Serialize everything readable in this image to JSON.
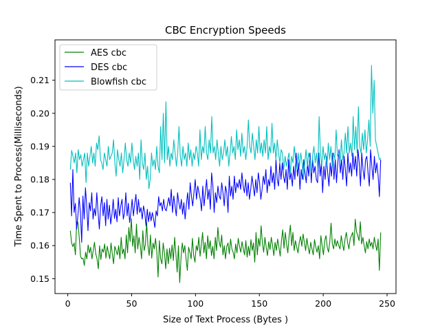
{
  "chart_data": {
    "type": "line",
    "title": "CBC Encryption Speeds",
    "xlabel": "Size of Text Process (Bytes )",
    "ylabel": "Time Spent to Process(Milliseconds)",
    "xlim": [
      -10,
      257
    ],
    "ylim": [
      0.1455,
      0.2222
    ],
    "xticks": [
      0,
      50,
      100,
      150,
      200,
      250
    ],
    "yticks": [
      0.15,
      0.16,
      0.17,
      0.18,
      0.19,
      0.2,
      0.21
    ],
    "ytick_labels": [
      "0.15",
      "0.16",
      "0.17",
      "0.18",
      "0.19",
      "0.20",
      "0.21"
    ],
    "legend_position": "upper-left",
    "grid": false,
    "x_start": 2,
    "x_end": 245,
    "series": [
      {
        "name": "AES  cbc",
        "color": "#008000",
        "values": [
          0.1645,
          0.1608,
          0.1597,
          0.1608,
          0.1572,
          0.1672,
          0.167,
          0.1625,
          0.1568,
          0.156,
          0.1562,
          0.154,
          0.158,
          0.156,
          0.1602,
          0.1578,
          0.1595,
          0.156,
          0.1585,
          0.161,
          0.1575,
          0.156,
          0.153,
          0.16,
          0.1558,
          0.159,
          0.158,
          0.1605,
          0.1562,
          0.1598,
          0.1578,
          0.156,
          0.1608,
          0.1575,
          0.1545,
          0.1598,
          0.1585,
          0.1572,
          0.16,
          0.156,
          0.1625,
          0.1575,
          0.159,
          0.156,
          0.1632,
          0.1578,
          0.1655,
          0.1612,
          0.1682,
          0.1598,
          0.163,
          0.1578,
          0.1665,
          0.159,
          0.1625,
          0.16,
          0.156,
          0.1645,
          0.1585,
          0.1602,
          0.167,
          0.16,
          0.157,
          0.1632,
          0.1562,
          0.1608,
          0.159,
          0.1622,
          0.158,
          0.1505,
          0.1615,
          0.156,
          0.1545,
          0.1608,
          0.1578,
          0.153,
          0.159,
          0.1545,
          0.1592,
          0.156,
          0.1602,
          0.1555,
          0.1625,
          0.1575,
          0.152,
          0.16,
          0.1488,
          0.1562,
          0.1608,
          0.1578,
          0.16,
          0.156,
          0.1525,
          0.1595,
          0.158,
          0.156,
          0.1622,
          0.157,
          0.155,
          0.16,
          0.1585,
          0.1625,
          0.1568,
          0.1602,
          0.164,
          0.1578,
          0.161,
          0.156,
          0.163,
          0.159,
          0.1615,
          0.157,
          0.1598,
          0.156,
          0.1625,
          0.1585,
          0.1655,
          0.1612,
          0.1595,
          0.1632,
          0.1572,
          0.16,
          0.156,
          0.1598,
          0.1608,
          0.1575,
          0.162,
          0.159,
          0.158,
          0.156,
          0.1605,
          0.1578,
          0.1622,
          0.1598,
          0.158,
          0.1612,
          0.159,
          0.1572,
          0.1615,
          0.1565,
          0.1598,
          0.157,
          0.1618,
          0.1585,
          0.1608,
          0.155,
          0.164,
          0.1572,
          0.1622,
          0.1598,
          0.166,
          0.1608,
          0.158,
          0.1625,
          0.1595,
          0.157,
          0.1612,
          0.1588,
          0.1625,
          0.16,
          0.157,
          0.161,
          0.1585,
          0.162,
          0.1595,
          0.1568,
          0.1615,
          0.1648,
          0.1592,
          0.164,
          0.1605,
          0.1578,
          0.1628,
          0.1662,
          0.16,
          0.164,
          0.1585,
          0.1615,
          0.1595,
          0.1578,
          0.161,
          0.1628,
          0.1598,
          0.1635,
          0.161,
          0.1585,
          0.1622,
          0.1595,
          0.1575,
          0.161,
          0.159,
          0.1572,
          0.1618,
          0.1595,
          0.158,
          0.16,
          0.156,
          0.163,
          0.16,
          0.1572,
          0.1615,
          0.163,
          0.1595,
          0.158,
          0.1612,
          0.1668,
          0.1605,
          0.159,
          0.162,
          0.1598,
          0.1615,
          0.16,
          0.159,
          0.163,
          0.1605,
          0.1585,
          0.162,
          0.164,
          0.161,
          0.159,
          0.162,
          0.163,
          0.164,
          0.16,
          0.168,
          0.1642,
          0.163,
          0.1615,
          0.1672,
          0.1605,
          0.1625,
          0.16,
          0.1578,
          0.1612,
          0.159,
          0.162,
          0.1598,
          0.161,
          0.159,
          0.1625,
          0.1602,
          0.1585,
          0.162,
          0.1525,
          0.164
        ]
      },
      {
        "name": "DES  cbc",
        "color": "#0000ff",
        "values": [
          0.179,
          0.169,
          0.183,
          0.17,
          0.1728,
          0.165,
          0.169,
          0.1745,
          0.17,
          0.161,
          0.175,
          0.168,
          0.1775,
          0.172,
          0.1645,
          0.173,
          0.1705,
          0.176,
          0.168,
          0.1712,
          0.169,
          0.176,
          0.17,
          0.165,
          0.172,
          0.1748,
          0.169,
          0.173,
          0.166,
          0.174,
          0.168,
          0.1722,
          0.1665,
          0.1695,
          0.174,
          0.1682,
          0.171,
          0.1672,
          0.1745,
          0.169,
          0.172,
          0.174,
          0.168,
          0.17,
          0.176,
          0.169,
          0.1728,
          0.167,
          0.17,
          0.174,
          0.169,
          0.1725,
          0.1755,
          0.1695,
          0.174,
          0.17,
          0.1715,
          0.168,
          0.172,
          0.17,
          0.166,
          0.171,
          0.1672,
          0.1702,
          0.1675,
          0.17,
          0.168,
          0.1655,
          0.1705,
          0.169,
          0.1748,
          0.172,
          0.173,
          0.1705,
          0.174,
          0.1712,
          0.1705,
          0.1725,
          0.1745,
          0.172,
          0.177,
          0.17,
          0.175,
          0.172,
          0.169,
          0.176,
          0.173,
          0.171,
          0.174,
          0.1695,
          0.173,
          0.168,
          0.1725,
          0.176,
          0.171,
          0.179,
          0.175,
          0.172,
          0.176,
          0.18,
          0.174,
          0.178,
          0.176,
          0.174,
          0.1705,
          0.178,
          0.172,
          0.176,
          0.18,
          0.174,
          0.177,
          0.171,
          0.182,
          0.178,
          0.17,
          0.176,
          0.173,
          0.178,
          0.175,
          0.174,
          0.179,
          0.176,
          0.172,
          0.178,
          0.176,
          0.17,
          0.181,
          0.175,
          0.178,
          0.174,
          0.181,
          0.176,
          0.179,
          0.1775,
          0.18,
          0.177,
          0.182,
          0.178,
          0.176,
          0.18,
          0.175,
          0.179,
          0.174,
          0.177,
          0.181,
          0.178,
          0.175,
          0.18,
          0.176,
          0.182,
          0.179,
          0.174,
          0.177,
          0.181,
          0.1785,
          0.183,
          0.176,
          0.18,
          0.178,
          0.184,
          0.179,
          0.182,
          0.177,
          0.186,
          0.18,
          0.178,
          0.185,
          0.18,
          0.185,
          0.181,
          0.179,
          0.183,
          0.177,
          0.186,
          0.18,
          0.182,
          0.178,
          0.184,
          0.18,
          0.188,
          0.181,
          0.185,
          0.177,
          0.183,
          0.18,
          0.186,
          0.182,
          0.179,
          0.185,
          0.181,
          0.188,
          0.179,
          0.186,
          0.182,
          0.184,
          0.18,
          0.179,
          0.188,
          0.181,
          0.185,
          0.176,
          0.184,
          0.18,
          0.187,
          0.182,
          0.178,
          0.185,
          0.181,
          0.188,
          0.18,
          0.186,
          0.179,
          0.185,
          0.189,
          0.182,
          0.186,
          0.18,
          0.187,
          0.183,
          0.178,
          0.188,
          0.182,
          0.185,
          0.181,
          0.188,
          0.183,
          0.187,
          0.181,
          0.189,
          0.185,
          0.178,
          0.188,
          0.183,
          0.18,
          0.186,
          0.187,
          0.182,
          0.178,
          0.189,
          0.184,
          0.18,
          0.187,
          0.182,
          0.185,
          0.181,
          0.1748,
          0.186
        ]
      },
      {
        "name": "Blowfish  cbc",
        "color": "#00bfbf",
        "values": [
          0.183,
          0.1888,
          0.187,
          0.185,
          0.188,
          0.182,
          0.189,
          0.186,
          0.1875,
          0.184,
          0.186,
          0.188,
          0.179,
          0.188,
          0.184,
          0.187,
          0.19,
          0.185,
          0.188,
          0.184,
          0.191,
          0.189,
          0.1932,
          0.186,
          0.185,
          0.183,
          0.188,
          0.186,
          0.184,
          0.19,
          0.186,
          0.187,
          0.188,
          0.192,
          0.185,
          0.181,
          0.189,
          0.186,
          0.184,
          0.188,
          0.182,
          0.186,
          0.191,
          0.186,
          0.184,
          0.188,
          0.185,
          0.191,
          0.186,
          0.183,
          0.187,
          0.184,
          0.188,
          0.18,
          0.192,
          0.185,
          0.183,
          0.188,
          0.18,
          0.184,
          0.1772,
          0.18,
          0.188,
          0.184,
          0.186,
          0.183,
          0.19,
          0.184,
          0.182,
          0.196,
          0.186,
          0.2,
          0.185,
          0.2035,
          0.186,
          0.19,
          0.184,
          0.188,
          0.186,
          0.192,
          0.188,
          0.184,
          0.188,
          0.196,
          0.187,
          0.184,
          0.19,
          0.186,
          0.188,
          0.184,
          0.191,
          0.186,
          0.189,
          0.184,
          0.188,
          0.186,
          0.19,
          0.188,
          0.184,
          0.195,
          0.186,
          0.19,
          0.188,
          0.196,
          0.188,
          0.186,
          0.192,
          0.188,
          0.199,
          0.188,
          0.19,
          0.186,
          0.192,
          0.188,
          0.184,
          0.19,
          0.186,
          0.188,
          0.192,
          0.187,
          0.19,
          0.184,
          0.188,
          0.193,
          0.188,
          0.19,
          0.186,
          0.195,
          0.189,
          0.192,
          0.187,
          0.194,
          0.188,
          0.19,
          0.186,
          0.19,
          0.198,
          0.19,
          0.188,
          0.194,
          0.19,
          0.186,
          0.192,
          0.188,
          0.196,
          0.188,
          0.191,
          0.187,
          0.192,
          0.188,
          0.196,
          0.186,
          0.19,
          0.188,
          0.197,
          0.188,
          0.191,
          0.186,
          0.192,
          0.188,
          0.185,
          0.189,
          0.188,
          0.183,
          0.187,
          0.184,
          0.186,
          0.188,
          0.182,
          0.187,
          0.185,
          0.19,
          0.186,
          0.183,
          0.188,
          0.184,
          0.188,
          0.185,
          0.18,
          0.185,
          0.189,
          0.184,
          0.188,
          0.186,
          0.182,
          0.187,
          0.19,
          0.185,
          0.188,
          0.183,
          0.199,
          0.188,
          0.184,
          0.19,
          0.186,
          0.188,
          0.184,
          0.191,
          0.186,
          0.19,
          0.184,
          0.188,
          0.186,
          0.195,
          0.187,
          0.188,
          0.185,
          0.192,
          0.186,
          0.188,
          0.194,
          0.188,
          0.196,
          0.188,
          0.191,
          0.187,
          0.199,
          0.189,
          0.196,
          0.188,
          0.202,
          0.19,
          0.188,
          0.194,
          0.189,
          0.195,
          0.188,
          0.192,
          0.198,
          0.19,
          0.2145,
          0.2,
          0.21,
          0.192,
          0.19,
          0.188,
          0.186,
          0.1865
        ]
      }
    ]
  }
}
